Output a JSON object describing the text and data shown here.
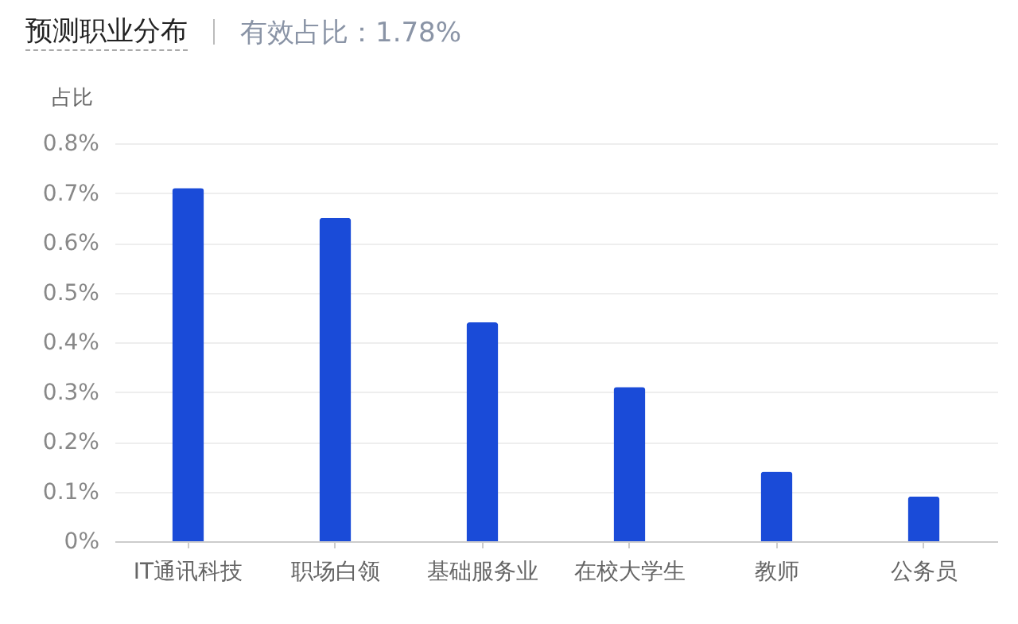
{
  "chart_data": {
    "type": "bar",
    "title": "预测职业分布",
    "subtitle": "有效占比：1.78%",
    "ylabel": "占比",
    "categories": [
      "IT通讯科技",
      "职场白领",
      "基础服务业",
      "在校大学生",
      "教师",
      "公务员"
    ],
    "values": [
      0.71,
      0.65,
      0.44,
      0.31,
      0.14,
      0.09
    ],
    "color": "#1a4bd8",
    "ylim": [
      0,
      0.8
    ],
    "yticks": [
      {
        "value": 0,
        "label": "0%"
      },
      {
        "value": 0.1,
        "label": "0.1%"
      },
      {
        "value": 0.2,
        "label": "0.2%"
      },
      {
        "value": 0.3,
        "label": "0.3%"
      },
      {
        "value": 0.4,
        "label": "0.4%"
      },
      {
        "value": 0.5,
        "label": "0.5%"
      },
      {
        "value": 0.6,
        "label": "0.6%"
      },
      {
        "value": 0.7,
        "label": "0.7%"
      },
      {
        "value": 0.8,
        "label": "0.8%"
      }
    ],
    "grid": "y"
  }
}
